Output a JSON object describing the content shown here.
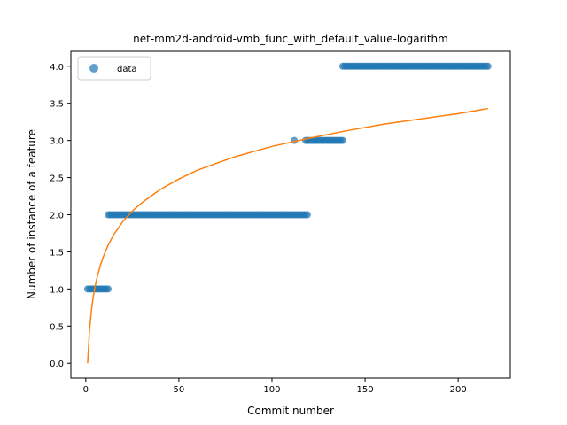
{
  "chart_data": {
    "type": "scatter",
    "title": "net-mm2d-android-vmb_func_with_default_value-logarithm",
    "xlabel": "Commit number",
    "ylabel": "Number of instance of a feature",
    "xlim": [
      -8,
      228
    ],
    "ylim": [
      -0.2,
      4.2
    ],
    "xticks": [
      0,
      50,
      100,
      150,
      200
    ],
    "yticks": [
      0.0,
      0.5,
      1.0,
      1.5,
      2.0,
      2.5,
      3.0,
      3.5,
      4.0
    ],
    "xtick_labels": [
      "0",
      "50",
      "100",
      "150",
      "200"
    ],
    "ytick_labels": [
      "0.0",
      "0.5",
      "1.0",
      "1.5",
      "2.0",
      "2.5",
      "3.0",
      "3.5",
      "4.0"
    ],
    "legend": {
      "position": "top-left",
      "label": "data"
    },
    "series": [
      {
        "name": "data",
        "kind": "scatter",
        "color": "#1f77b4",
        "segments": [
          {
            "x_start": 1,
            "x_end": 12,
            "y": 1.0
          },
          {
            "x_start": 12,
            "x_end": 119,
            "y": 2.0
          },
          {
            "x_start": 112,
            "x_end": 112,
            "y": 3.0
          },
          {
            "x_start": 118,
            "x_end": 138,
            "y": 3.0
          },
          {
            "x_start": 138,
            "x_end": 216,
            "y": 4.0
          }
        ]
      },
      {
        "kind": "line",
        "color": "#ff7f0e",
        "model": "logarithmic fit",
        "x": [
          1,
          2,
          3,
          4,
          5,
          6,
          8,
          10,
          12,
          15,
          20,
          25,
          30,
          40,
          50,
          60,
          70,
          80,
          100,
          120,
          140,
          160,
          180,
          200,
          216
        ],
        "y": [
          0.0,
          0.44,
          0.7,
          0.89,
          1.03,
          1.15,
          1.33,
          1.47,
          1.59,
          1.73,
          1.91,
          2.05,
          2.16,
          2.34,
          2.48,
          2.6,
          2.69,
          2.78,
          2.92,
          3.03,
          3.13,
          3.22,
          3.29,
          3.36,
          3.43
        ]
      }
    ]
  }
}
